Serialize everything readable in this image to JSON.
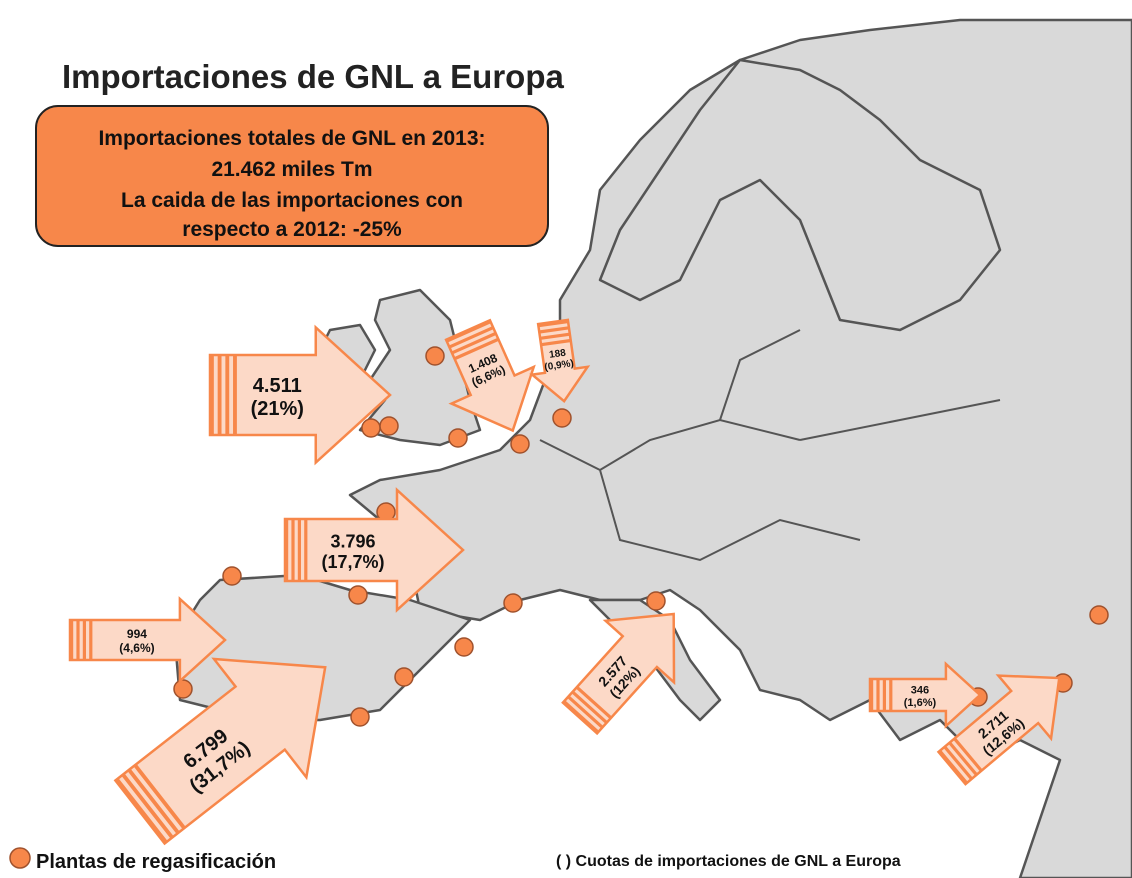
{
  "title": "Importaciones de GNL a Europa",
  "summary": {
    "lines": [
      "Importaciones totales de GNL en 2013:",
      "21.462 miles Tm",
      "La caida de las importaciones con",
      "respecto a 2012: -25%"
    ]
  },
  "flows": [
    {
      "amount": "4.511",
      "share": "(21%)"
    },
    {
      "amount": "1.408",
      "share": "(6,6%)"
    },
    {
      "amount": "188",
      "share": "(0,9%)"
    },
    {
      "amount": "3.796",
      "share": "(17,7%)"
    },
    {
      "amount": "994",
      "share": "(4,6%)"
    },
    {
      "amount": "6.799",
      "share": "(31,7%)"
    },
    {
      "amount": "2.577",
      "share": "(12%)"
    },
    {
      "amount": "346",
      "share": "(1,6%)"
    },
    {
      "amount": "2.711",
      "share": "(12,6%)"
    }
  ],
  "legend": {
    "plants": "Plantas de regasificación",
    "shares": "( ) Cuotas de importaciones de GNL a Europa"
  }
}
